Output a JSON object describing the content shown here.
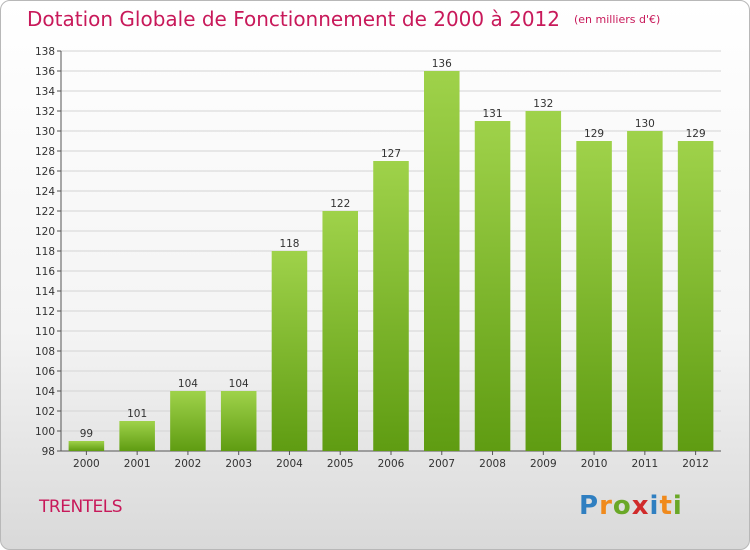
{
  "title": "Dotation Globale de Fonctionnement de 2000 à 2012",
  "unit": "(en milliers d'€)",
  "commune": "TRENTELS",
  "logo": {
    "letters": [
      "P",
      "r",
      "o",
      "x",
      "i",
      "t",
      "i"
    ],
    "colors": [
      "#2f7fc1",
      "#f08a1c",
      "#6aa827",
      "#d02a2a",
      "#2f7fc1",
      "#f08a1c",
      "#6aa827"
    ]
  },
  "chart_data": {
    "type": "bar",
    "categories": [
      "2000",
      "2001",
      "2002",
      "2003",
      "2004",
      "2005",
      "2006",
      "2007",
      "2008",
      "2009",
      "2010",
      "2011",
      "2012"
    ],
    "values": [
      99,
      101,
      104,
      104,
      118,
      122,
      127,
      136,
      131,
      132,
      129,
      130,
      129
    ],
    "ylim": [
      98,
      138
    ],
    "yticks": [
      98,
      100,
      102,
      104,
      106,
      108,
      110,
      112,
      114,
      116,
      118,
      120,
      122,
      124,
      126,
      128,
      130,
      132,
      134,
      136,
      138
    ],
    "grid": true,
    "bar_color": "#7dbb2f"
  }
}
